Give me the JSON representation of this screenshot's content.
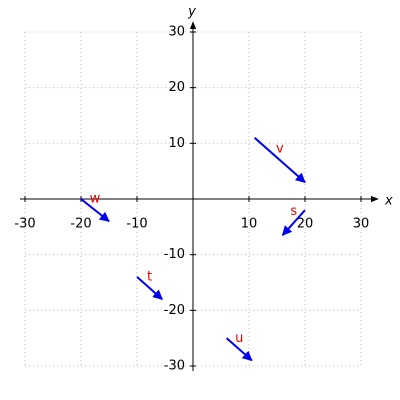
{
  "chart_data": {
    "type": "vector",
    "x_label": "x",
    "y_label": "y",
    "xlim": [
      -30,
      30
    ],
    "ylim": [
      -30,
      30
    ],
    "xticks": [
      -30,
      -20,
      -10,
      10,
      20,
      30
    ],
    "yticks": [
      -30,
      -20,
      -10,
      10,
      20,
      30
    ],
    "grid": true,
    "color": "#0000ee",
    "label_color": "#ee0000",
    "vectors": [
      {
        "name": "v",
        "x": [
          11,
          20
        ],
        "y": [
          11,
          3
        ]
      },
      {
        "name": "w",
        "x": [
          -20,
          -15
        ],
        "y": [
          0,
          -4
        ]
      },
      {
        "name": "s",
        "x": [
          20,
          16
        ],
        "y": [
          -2,
          -6.5
        ]
      },
      {
        "name": "t",
        "x": [
          -10,
          -5.5
        ],
        "y": [
          -14,
          -18
        ]
      },
      {
        "name": "u",
        "x": [
          6,
          10.5
        ],
        "y": [
          -25,
          -29
        ]
      }
    ]
  }
}
